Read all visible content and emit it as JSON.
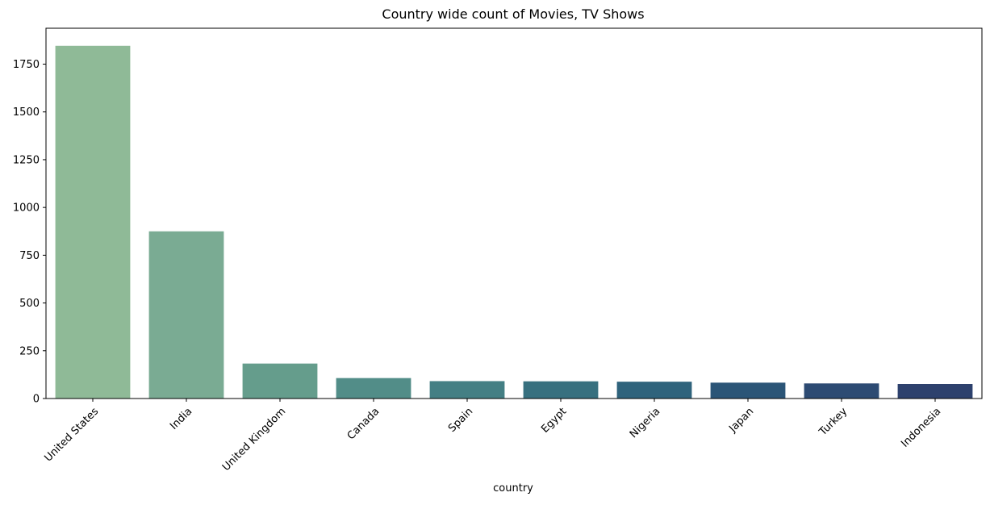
{
  "chart_data": {
    "type": "bar",
    "title": "Country wide count of Movies, TV Shows",
    "xlabel": "country",
    "ylabel": "",
    "categories": [
      "United States",
      "India",
      "United Kingdom",
      "Canada",
      "Spain",
      "Egypt",
      "Nigeria",
      "Japan",
      "Turkey",
      "Indonesia"
    ],
    "values": [
      1846,
      875,
      183,
      107,
      91,
      90,
      88,
      83,
      79,
      76
    ],
    "colors": [
      "#8fba97",
      "#7aab93",
      "#659d8c",
      "#528d88",
      "#447f84",
      "#37707f",
      "#2f637c",
      "#2b5577",
      "#2d4b73",
      "#2d416d"
    ],
    "ylim": [
      0,
      1938
    ],
    "yticks": [
      0,
      250,
      500,
      750,
      1000,
      1250,
      1500,
      1750
    ],
    "ytick_labels": [
      "0",
      "250",
      "500",
      "750",
      "1000",
      "1250",
      "1500",
      "1750"
    ],
    "grid": false,
    "legend": "none",
    "xtick_rotation_deg": 45
  }
}
